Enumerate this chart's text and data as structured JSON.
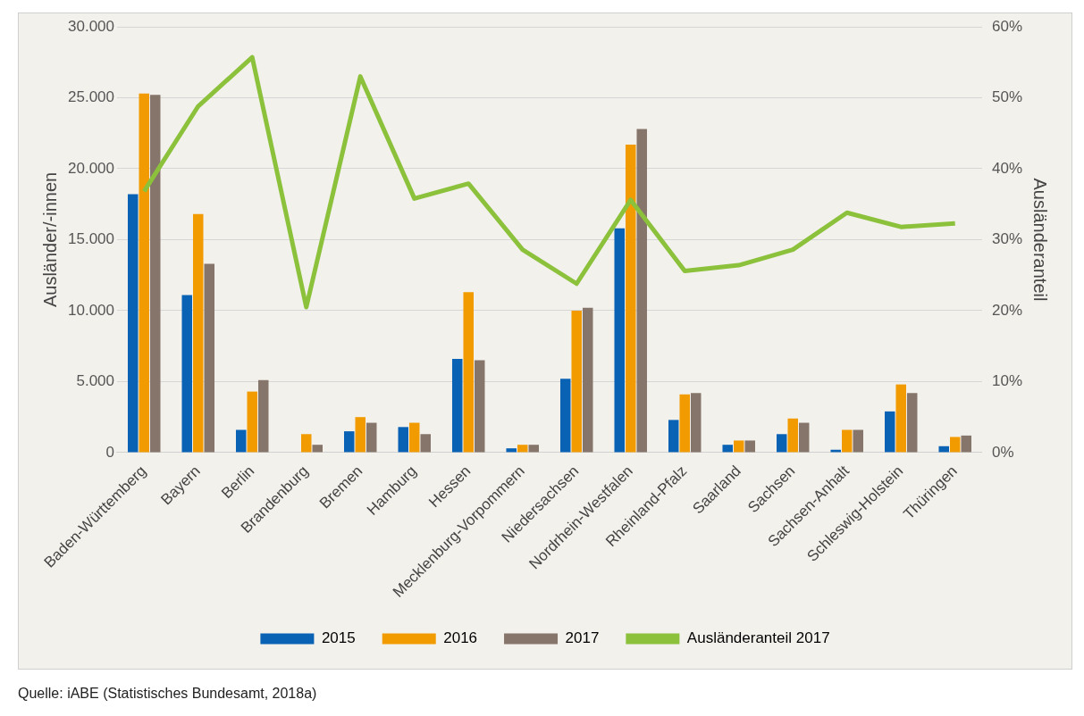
{
  "chart_data": {
    "type": "bar",
    "ylabel": "Ausländer/-innen",
    "y2label": "Ausländeranteil",
    "categories": [
      "Baden-Württemberg",
      "Bayern",
      "Berlin",
      "Brandenburg",
      "Bremen",
      "Hamburg",
      "Hessen",
      "Mecklenburg-Vorpommern",
      "Niedersachsen",
      "Nordrhein-Westfalen",
      "Rheinland-Pfalz",
      "Saarland",
      "Sachsen",
      "Sachsen-Anhalt",
      "Schleswig-Holstein",
      "Thüringen"
    ],
    "series": [
      {
        "name": "2015",
        "color": "#0a62b4",
        "values": [
          18200,
          11100,
          1600,
          0,
          1500,
          1800,
          6600,
          300,
          5200,
          15800,
          2300,
          550,
          1300,
          200,
          2900,
          450
        ]
      },
      {
        "name": "2016",
        "color": "#f29b00",
        "values": [
          25300,
          16800,
          4300,
          1300,
          2500,
          2100,
          11300,
          550,
          10000,
          21700,
          4100,
          850,
          2400,
          1600,
          4800,
          1100
        ]
      },
      {
        "name": "2017",
        "color": "#86756a",
        "values": [
          25200,
          13300,
          5100,
          550,
          2100,
          1300,
          6500,
          550,
          10200,
          22800,
          4200,
          850,
          2100,
          1600,
          4200,
          1200
        ]
      },
      {
        "name": "Ausländeranteil 2017",
        "type": "line",
        "axis": "y2",
        "color": "#8cc13c",
        "values": [
          36.8,
          48.8,
          55.7,
          20.5,
          53,
          35.8,
          37.9,
          28.6,
          23.8,
          35.6,
          25.6,
          26.4,
          28.6,
          33.8,
          31.8,
          32.3
        ]
      }
    ],
    "ylim": [
      0,
      30000
    ],
    "yticks": [
      {
        "value": 0,
        "label": "0"
      },
      {
        "value": 5000,
        "label": "5.000"
      },
      {
        "value": 10000,
        "label": "10.000"
      },
      {
        "value": 15000,
        "label": "15.000"
      },
      {
        "value": 20000,
        "label": "20.000"
      },
      {
        "value": 25000,
        "label": "25.000"
      },
      {
        "value": 30000,
        "label": "30.000"
      }
    ],
    "y2lim": [
      0,
      60
    ],
    "y2ticks": [
      {
        "value": 0,
        "label": "0%"
      },
      {
        "value": 10,
        "label": "10%"
      },
      {
        "value": 20,
        "label": "20%"
      },
      {
        "value": 30,
        "label": "30%"
      },
      {
        "value": 40,
        "label": "40%"
      },
      {
        "value": 50,
        "label": "50%"
      },
      {
        "value": 60,
        "label": "60%"
      }
    ],
    "grid": "y",
    "legend": "bottom",
    "marker": "none",
    "annotations": [
      "Quelle: iABE (Statistisches Bundesamt, 2018a)"
    ]
  }
}
